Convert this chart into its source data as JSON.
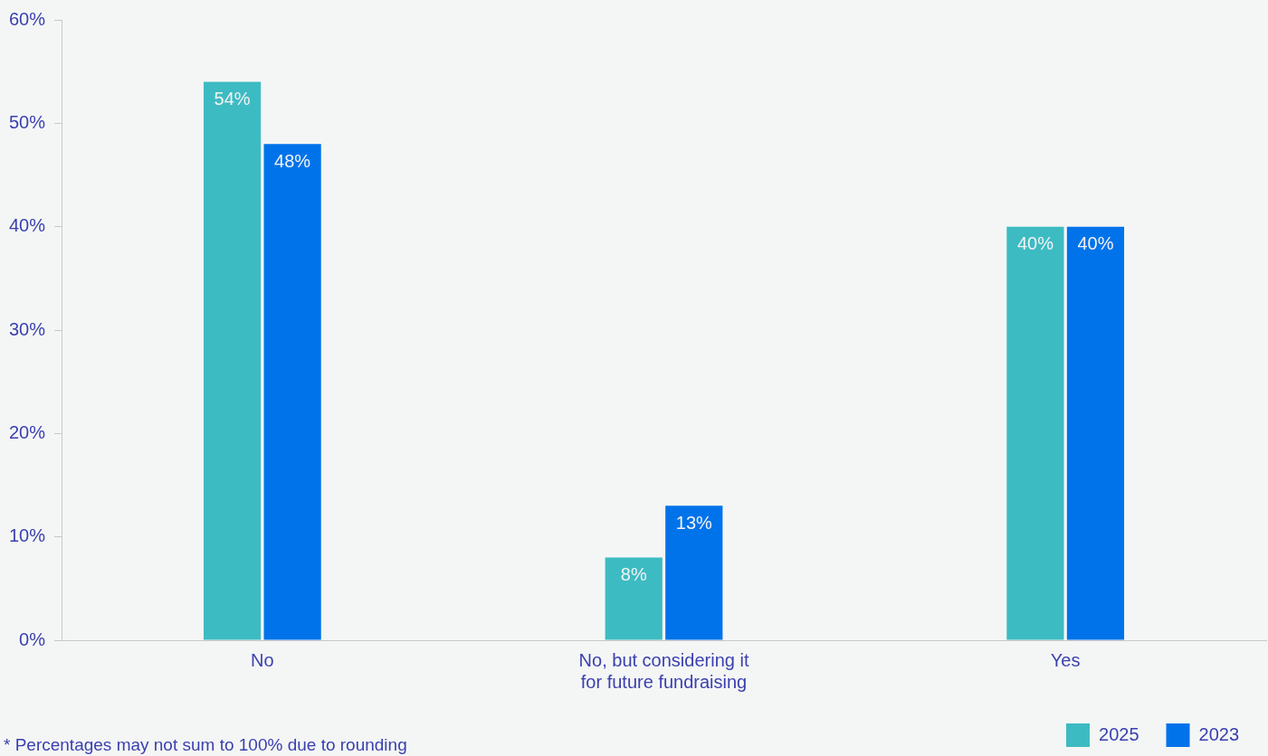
{
  "chart_data": {
    "type": "bar",
    "categories": [
      "No",
      "No, but considering it for future fundraising",
      "Yes"
    ],
    "series": [
      {
        "name": "2025",
        "color": "#3dbbc3",
        "values": [
          54,
          8,
          40
        ],
        "value_labels": [
          "54%",
          "8%",
          "40%"
        ]
      },
      {
        "name": "2023",
        "color": "#0073ea",
        "values": [
          48,
          13,
          40
        ],
        "value_labels": [
          "48%",
          "13%",
          "40%"
        ]
      }
    ],
    "ylim": [
      0,
      60
    ],
    "yticks": [
      {
        "value": 0,
        "label": "0%"
      },
      {
        "value": 10,
        "label": "10%"
      },
      {
        "value": 20,
        "label": "20%"
      },
      {
        "value": 30,
        "label": "30%"
      },
      {
        "value": 40,
        "label": "40%"
      },
      {
        "value": 50,
        "label": "50%"
      },
      {
        "value": 60,
        "label": "60%"
      }
    ],
    "grid": false,
    "legend": "bottom right",
    "annotations": [
      "* Percentages may not sum to 100% due to rounding"
    ]
  }
}
